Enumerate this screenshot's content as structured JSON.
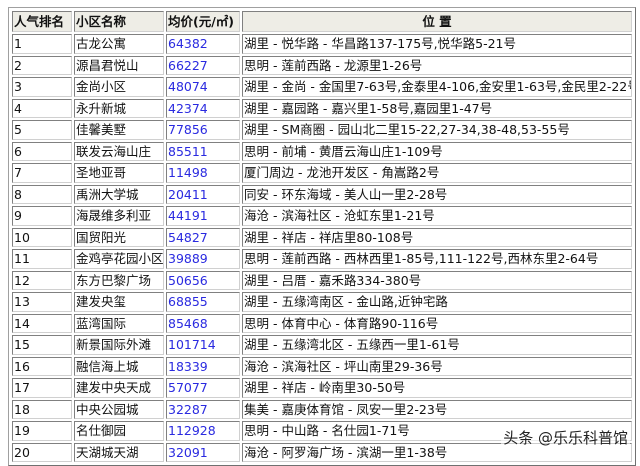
{
  "headers": [
    "人气排名",
    "小区名称",
    "均价(元/㎡)",
    "位 置"
  ],
  "rows": [
    [
      "1",
      "古龙公寓",
      "64382",
      "湖里 - 悦华路 - 华昌路137-175号,悦华路5-21号"
    ],
    [
      "2",
      "源昌君悦山",
      "66227",
      "思明 - 莲前西路 - 龙源里1-26号"
    ],
    [
      "3",
      "金尚小区",
      "48074",
      "湖里 - 金尚 - 金国里7-63号,金泰里4-106,金安里1-63号,金民里2-22号"
    ],
    [
      "4",
      "永升新城",
      "42374",
      "湖里 - 嘉园路 - 嘉兴里1-58号,嘉园里1-47号"
    ],
    [
      "5",
      "佳馨美墅",
      "77856",
      "湖里 - SM商圈 - 园山北二里15-22,27-34,38-48,53-55号"
    ],
    [
      "6",
      "联发云海山庄",
      "85511",
      "思明 - 前埔 - 黄厝云海山庄1-109号"
    ],
    [
      "7",
      "圣地亚哥",
      "11498",
      "厦门周边 - 龙池开发区 - 角嵩路2号"
    ],
    [
      "8",
      "禹洲大学城",
      "20411",
      "同安 - 环东海域 - 美人山一里2-28号"
    ],
    [
      "9",
      "海晟维多利亚",
      "44191",
      "海沧 - 滨海社区 - 沧虹东里1-21号"
    ],
    [
      "10",
      "国贸阳光",
      "54827",
      "湖里 - 祥店 - 祥店里80-108号"
    ],
    [
      "11",
      "金鸡亭花园小区",
      "39889",
      "思明 - 莲前西路 - 西林西里1-85号,111-122号,西林东里2-64号"
    ],
    [
      "12",
      "东方巴黎广场",
      "50656",
      "湖里 - 吕厝 - 嘉禾路334-380号"
    ],
    [
      "13",
      "建发央玺",
      "68855",
      "湖里 - 五缘湾南区 - 金山路,近钟宅路"
    ],
    [
      "14",
      "蓝湾国际",
      "85468",
      "思明 - 体育中心 - 体育路90-116号"
    ],
    [
      "15",
      "新景国际外滩",
      "101714",
      "湖里 - 五缘湾北区 - 五缘西一里1-61号"
    ],
    [
      "16",
      "融信海上城",
      "18339",
      "海沧 - 滨海社区 - 坪山南里29-36号"
    ],
    [
      "17",
      "建发中央天成",
      "57077",
      "湖里 - 祥店 - 岭南里30-50号"
    ],
    [
      "18",
      "中央公园城",
      "32287",
      "集美 - 嘉庚体育馆 - 凤安一里2-23号"
    ],
    [
      "19",
      "名仕御园",
      "112928",
      "思明 - 中山路 - 名仕园1-71号"
    ],
    [
      "20",
      "天湖城天湖",
      "32091",
      "海沧 - 阿罗海广场 - 滨湖一里1-38号"
    ]
  ],
  "watermark": "头条 @乐乐科普馆",
  "colors": {
    "price": "#2a2ae0",
    "header_bg": "#eeede6"
  }
}
